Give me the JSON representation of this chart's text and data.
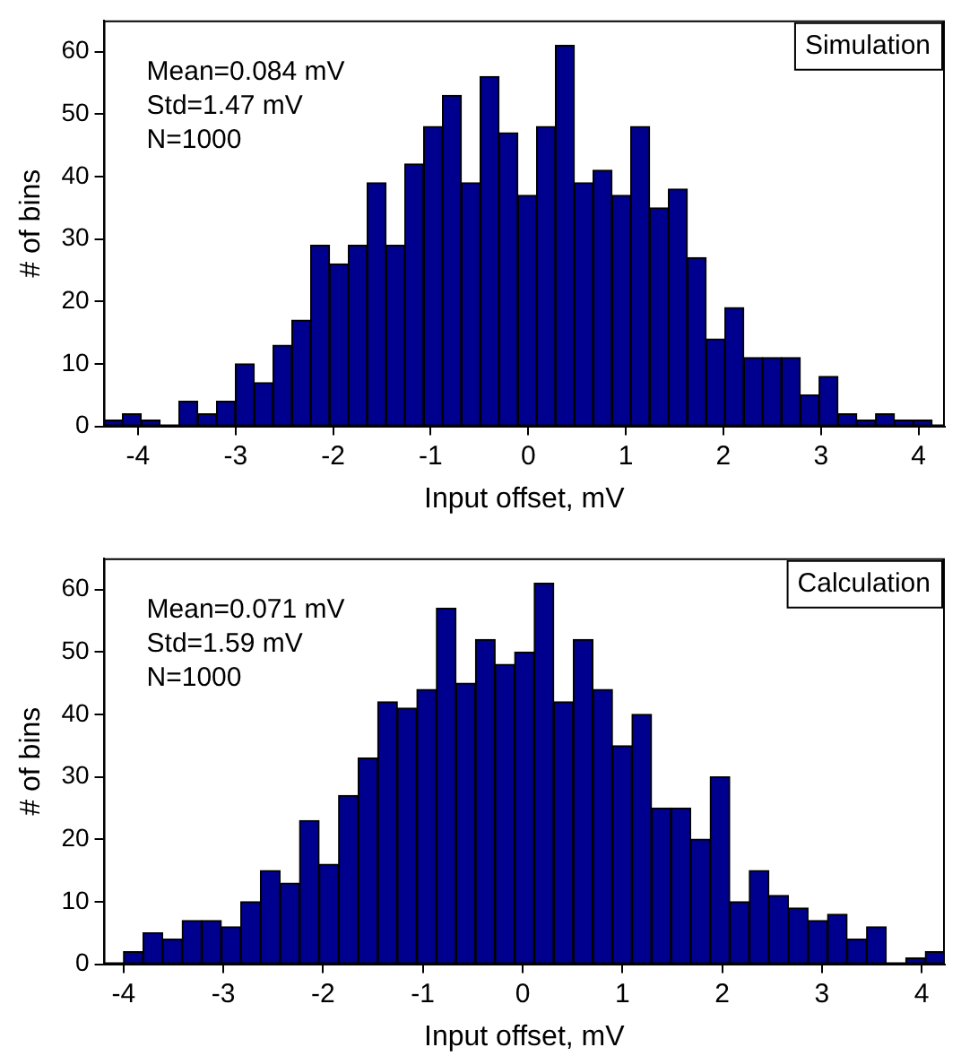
{
  "chart_data": [
    {
      "type": "histogram",
      "title": "Simulation",
      "xlabel": "Input offset, mV",
      "ylabel": "# of bins",
      "color": "#00008f",
      "bins": [
        -4.353,
        -4.16,
        -3.967,
        -3.774,
        -3.581,
        -3.388,
        -3.195,
        -3.002,
        -2.809,
        -2.616,
        -2.423,
        -2.23,
        -2.037,
        -1.844,
        -1.651,
        -1.458,
        -1.265,
        -1.072,
        -0.879,
        -0.686,
        -0.493,
        -0.3,
        -0.107,
        0.086,
        0.279,
        0.472,
        0.665,
        0.858,
        1.051,
        1.244,
        1.437,
        1.63,
        1.823,
        2.016,
        2.209,
        2.402,
        2.595,
        2.788,
        2.981,
        3.174,
        3.367,
        3.56,
        3.753,
        3.946,
        4.139
      ],
      "values": [
        1,
        2,
        1,
        0,
        4,
        2,
        4,
        10,
        7,
        13,
        17,
        29,
        26,
        29,
        39,
        29,
        42,
        48,
        53,
        39,
        56,
        47,
        37,
        48,
        61,
        39,
        41,
        37,
        48,
        35,
        38,
        27,
        14,
        19,
        11,
        11,
        11,
        5,
        8,
        2,
        1,
        2,
        1,
        1
      ],
      "xlim": [
        -4.353,
        4.27
      ],
      "xticks": [
        -4,
        -3,
        -2,
        -1,
        0,
        1,
        2,
        3,
        4
      ],
      "ylim": [
        0,
        65
      ],
      "yticks": [
        0,
        10,
        20,
        30,
        40,
        50,
        60
      ],
      "grid": false,
      "annotations": [
        "Mean=0.084 mV",
        "Std=1.47 mV",
        "N=1000"
      ]
    },
    {
      "type": "histogram",
      "title": "Calculation",
      "xlabel": "Input offset, mV",
      "ylabel": "# of bins",
      "color": "#00008f",
      "bins": [
        -4.0,
        -3.804,
        -3.608,
        -3.412,
        -3.216,
        -3.02,
        -2.824,
        -2.628,
        -2.432,
        -2.236,
        -2.04,
        -1.844,
        -1.648,
        -1.452,
        -1.256,
        -1.06,
        -0.864,
        -0.668,
        -0.472,
        -0.276,
        -0.08,
        0.116,
        0.312,
        0.508,
        0.704,
        0.9,
        1.096,
        1.292,
        1.488,
        1.684,
        1.88,
        2.076,
        2.272,
        2.468,
        2.664,
        2.86,
        3.056,
        3.252,
        3.448,
        3.644,
        3.84,
        4.036,
        4.232
      ],
      "values": [
        2,
        5,
        4,
        7,
        7,
        6,
        10,
        15,
        13,
        23,
        16,
        27,
        33,
        42,
        41,
        44,
        57,
        45,
        52,
        48,
        50,
        61,
        42,
        52,
        44,
        35,
        40,
        25,
        25,
        20,
        30,
        10,
        15,
        11,
        9,
        7,
        8,
        4,
        6,
        0,
        1,
        2
      ],
      "xlim": [
        -4.2,
        4.232
      ],
      "xticks": [
        -4,
        -3,
        -2,
        -1,
        0,
        1,
        2,
        3,
        4
      ],
      "ylim": [
        0,
        65
      ],
      "yticks": [
        0,
        10,
        20,
        30,
        40,
        50,
        60
      ],
      "grid": false,
      "annotations": [
        "Mean=0.071 mV",
        "Std=1.59 mV",
        "N=1000"
      ]
    }
  ]
}
